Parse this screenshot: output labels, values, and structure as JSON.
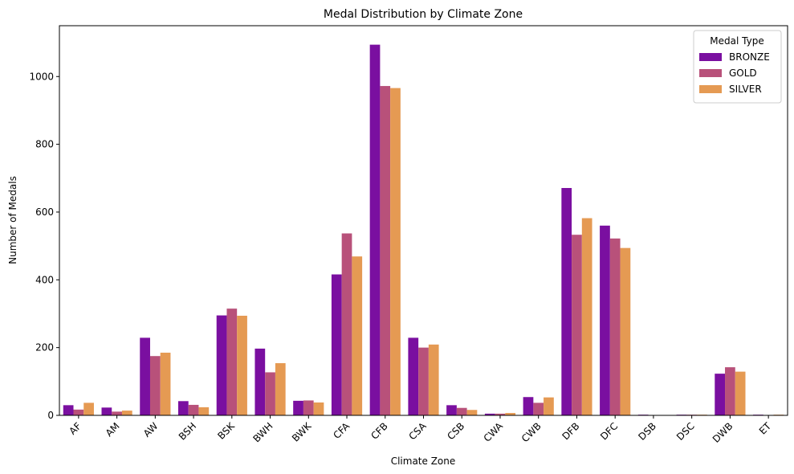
{
  "chart_data": {
    "type": "bar",
    "title": "Medal Distribution by Climate Zone",
    "xlabel": "Climate Zone",
    "ylabel": "Number of Medals",
    "ylim": [
      0,
      1150
    ],
    "yticks": [
      0,
      200,
      400,
      600,
      800,
      1000
    ],
    "grid": false,
    "legend_position": "top-right",
    "legend_title": "Medal Type",
    "categories": [
      "AF",
      "AM",
      "AW",
      "BSH",
      "BSK",
      "BWH",
      "BWK",
      "CFA",
      "CFB",
      "CSA",
      "CSB",
      "CWA",
      "CWB",
      "DFB",
      "DFC",
      "DSB",
      "DSC",
      "DWB",
      "ET"
    ],
    "series": [
      {
        "name": "BRONZE",
        "color": "#7a0fa0",
        "values": [
          30,
          23,
          229,
          42,
          295,
          197,
          43,
          416,
          1094,
          229,
          30,
          5,
          54,
          671,
          560,
          2,
          2,
          123,
          2
        ]
      },
      {
        "name": "GOLD",
        "color": "#b8517a",
        "values": [
          17,
          11,
          175,
          31,
          315,
          127,
          44,
          537,
          972,
          200,
          22,
          5,
          37,
          533,
          522,
          0,
          2,
          142,
          0
        ]
      },
      {
        "name": "SILVER",
        "color": "#e59a53",
        "values": [
          37,
          14,
          185,
          24,
          294,
          154,
          38,
          469,
          966,
          209,
          16,
          7,
          53,
          582,
          494,
          0,
          2,
          129,
          2
        ]
      }
    ]
  }
}
